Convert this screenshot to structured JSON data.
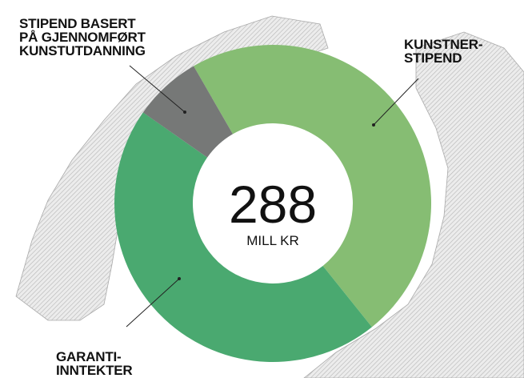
{
  "chart_data": {
    "type": "donut",
    "categories": [
      "KUNSTNER-\nSTIPEND",
      "GARANTI-\nINNTEKTER",
      "STIPEND BASERT\nPÅ GJENNOMFØRT\nKUNSTUTDANNING"
    ],
    "values": [
      137,
      131,
      20
    ],
    "colors": [
      "#86bd73",
      "#4aa970",
      "#767877"
    ],
    "total": 288,
    "unit": "MILL KR"
  }
}
